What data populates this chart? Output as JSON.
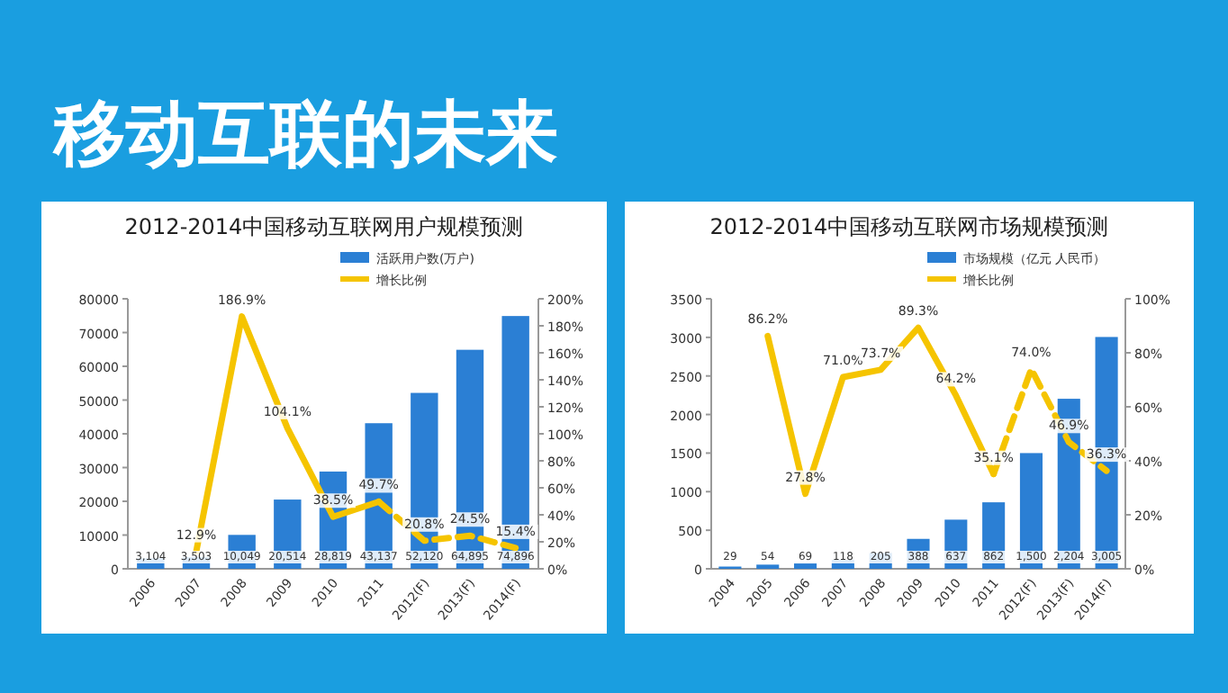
{
  "chart_data": [
    {
      "type": "other",
      "title": "移动互联的未来"
    },
    {
      "type": "bar",
      "title": "2012-2014中国移动互联网用户规模预测",
      "categories": [
        "2006",
        "2007",
        "2008",
        "2009",
        "2010",
        "2011",
        "2012(F)",
        "2013(F)",
        "2014(F)"
      ],
      "series": [
        {
          "name": "活跃用户数(万户)",
          "type": "bar",
          "color": "#2b7fd4",
          "values": [
            3104,
            3503,
            10049,
            20514,
            28819,
            43137,
            52120,
            64895,
            74896
          ],
          "value_labels": [
            "3,104",
            "3,503",
            "10,049",
            "20,514",
            "28,819",
            "43,137",
            "52,120",
            "64,895",
            "74,896"
          ]
        },
        {
          "name": "增长比例",
          "type": "line",
          "axis": "y2",
          "color": "#f5c400",
          "line_style": "solid",
          "values": [
            null,
            12.9,
            186.9,
            104.1,
            38.5,
            49.7,
            null,
            null,
            null
          ],
          "value_labels": [
            null,
            "12.9%",
            "186.9%",
            "104.1%",
            "38.5%",
            "49.7%",
            null,
            null,
            null
          ]
        },
        {
          "type": "line",
          "axis": "y2",
          "color": "#f5c400",
          "line_style": "dashed",
          "values": [
            null,
            null,
            null,
            null,
            null,
            49.7,
            20.8,
            24.5,
            15.4
          ],
          "value_labels": [
            null,
            null,
            null,
            null,
            null,
            null,
            "20.8%",
            "24.5%",
            "15.4%"
          ]
        }
      ],
      "ylim": [
        0,
        80000
      ],
      "yticks": [
        0,
        10000,
        20000,
        30000,
        40000,
        50000,
        60000,
        70000,
        80000
      ],
      "y2lim": [
        0,
        200
      ],
      "y2ticks": [
        {
          "value": 0,
          "label": "0%"
        },
        {
          "value": 20,
          "label": "20%"
        },
        {
          "value": 40,
          "label": "40%"
        },
        {
          "value": 60,
          "label": "60%"
        },
        {
          "value": 80,
          "label": "80%"
        },
        {
          "value": 100,
          "label": "100%"
        },
        {
          "value": 120,
          "label": "120%"
        },
        {
          "value": 140,
          "label": "140%"
        },
        {
          "value": 160,
          "label": "160%"
        },
        {
          "value": 180,
          "label": "180%"
        },
        {
          "value": 200,
          "label": "200%"
        }
      ],
      "legend": "top right"
    },
    {
      "type": "bar",
      "title": "2012-2014中国移动互联网市场规模预测",
      "categories": [
        "2004",
        "2005",
        "2006",
        "2007",
        "2008",
        "2009",
        "2010",
        "2011",
        "2012(F)",
        "2013(F)",
        "2014(F)"
      ],
      "series": [
        {
          "name": "市场规模（亿元 人民币）",
          "type": "bar",
          "color": "#2b7fd4",
          "values": [
            29,
            54,
            69,
            118,
            205,
            388,
            637,
            862,
            1500,
            2204,
            3005
          ],
          "value_labels": [
            "29",
            "54",
            "69",
            "118",
            "205",
            "388",
            "637",
            "862",
            "1,500",
            "2,204",
            "3,005"
          ]
        },
        {
          "name": "增长比例",
          "type": "line",
          "axis": "y2",
          "color": "#f5c400",
          "line_style": "solid",
          "values": [
            null,
            86.2,
            27.8,
            71.0,
            73.7,
            89.3,
            64.2,
            35.1,
            null,
            null,
            null
          ],
          "value_labels": [
            null,
            "86.2%",
            "27.8%",
            "71.0%",
            "73.7%",
            "89.3%",
            "64.2%",
            "35.1%",
            null,
            null,
            null
          ]
        },
        {
          "type": "line",
          "axis": "y2",
          "color": "#f5c400",
          "line_style": "dashed",
          "values": [
            null,
            null,
            null,
            null,
            null,
            null,
            null,
            35.1,
            74.0,
            46.9,
            36.3
          ],
          "value_labels": [
            null,
            null,
            null,
            null,
            null,
            null,
            null,
            null,
            "74.0%",
            "46.9%",
            "36.3%"
          ]
        }
      ],
      "ylim": [
        0,
        3500
      ],
      "yticks": [
        0,
        500,
        1000,
        1500,
        2000,
        2500,
        3000,
        3500
      ],
      "y2lim": [
        0,
        100
      ],
      "y2ticks": [
        {
          "value": 0,
          "label": "0%"
        },
        {
          "value": 20,
          "label": "20%"
        },
        {
          "value": 40,
          "label": "40%"
        },
        {
          "value": 60,
          "label": "60%"
        },
        {
          "value": 80,
          "label": "80%"
        },
        {
          "value": 100,
          "label": "100%"
        }
      ],
      "legend": "top right"
    }
  ]
}
